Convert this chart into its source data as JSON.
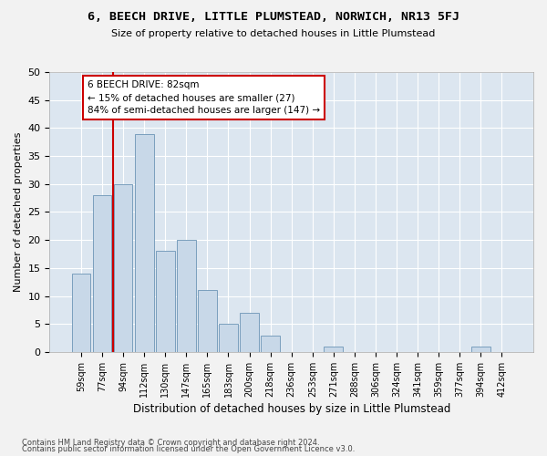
{
  "title": "6, BEECH DRIVE, LITTLE PLUMSTEAD, NORWICH, NR13 5FJ",
  "subtitle": "Size of property relative to detached houses in Little Plumstead",
  "xlabel": "Distribution of detached houses by size in Little Plumstead",
  "ylabel": "Number of detached properties",
  "bar_color": "#c8d8e8",
  "bar_edge_color": "#7a9fbd",
  "background_color": "#dce6f0",
  "grid_color": "#ffffff",
  "fig_background": "#f2f2f2",
  "categories": [
    "59sqm",
    "77sqm",
    "94sqm",
    "112sqm",
    "130sqm",
    "147sqm",
    "165sqm",
    "183sqm",
    "200sqm",
    "218sqm",
    "236sqm",
    "253sqm",
    "271sqm",
    "288sqm",
    "306sqm",
    "324sqm",
    "341sqm",
    "359sqm",
    "377sqm",
    "394sqm",
    "412sqm"
  ],
  "values": [
    14,
    28,
    30,
    39,
    18,
    20,
    11,
    5,
    7,
    3,
    0,
    0,
    1,
    0,
    0,
    0,
    0,
    0,
    0,
    1,
    0
  ],
  "ylim": [
    0,
    50
  ],
  "yticks": [
    0,
    5,
    10,
    15,
    20,
    25,
    30,
    35,
    40,
    45,
    50
  ],
  "vline_x_index": 1.5,
  "vline_color": "#cc0000",
  "annotation_text": "6 BEECH DRIVE: 82sqm\n← 15% of detached houses are smaller (27)\n84% of semi-detached houses are larger (147) →",
  "annotation_box_color": "#ffffff",
  "annotation_box_edge_color": "#cc0000",
  "footer1": "Contains HM Land Registry data © Crown copyright and database right 2024.",
  "footer2": "Contains public sector information licensed under the Open Government Licence v3.0."
}
